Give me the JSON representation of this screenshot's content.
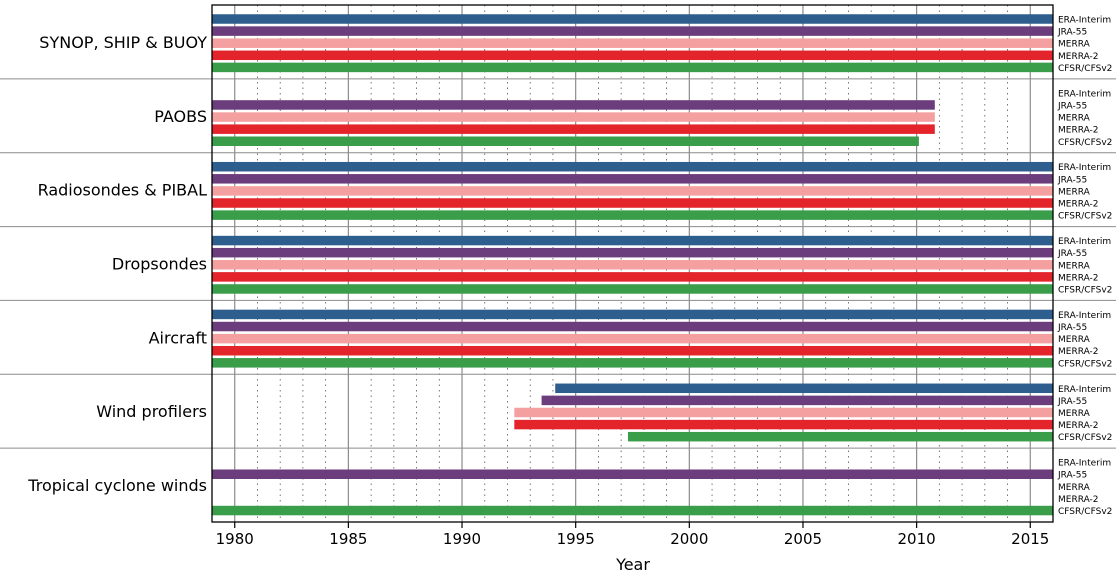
{
  "chart_data": {
    "type": "bar",
    "subtype": "timeline-gantt",
    "title": "",
    "xlabel": "Year",
    "ylabel": "",
    "xlim": [
      1979,
      2016
    ],
    "xticks": [
      1980,
      1985,
      1990,
      1995,
      2000,
      2005,
      2010,
      2015
    ],
    "minor_grid": "yearly dotted lines",
    "major_grid": "solid lines every 5 years",
    "legend_placement": "right of each panel",
    "reanalyses": [
      {
        "name": "ERA-Interim",
        "color": "#2e5e8e"
      },
      {
        "name": "JRA-55",
        "color": "#6b3d7d"
      },
      {
        "name": "MERRA",
        "color": "#f4a0a0"
      },
      {
        "name": "MERRA-2",
        "color": "#e3242b"
      },
      {
        "name": "CFSR/CFSv2",
        "color": "#3a9d4a"
      }
    ],
    "categories": [
      {
        "label": "SYNOP, SHIP & BUOY",
        "spans": [
          [
            1979,
            2016
          ],
          [
            1979,
            2016
          ],
          [
            1979,
            2016
          ],
          [
            1979,
            2016
          ],
          [
            1979,
            2016
          ]
        ]
      },
      {
        "label": "PAOBS",
        "spans": [
          null,
          [
            1979,
            2010.8
          ],
          [
            1979,
            2010.8
          ],
          [
            1979,
            2010.8
          ],
          [
            1979,
            2010.1
          ]
        ]
      },
      {
        "label": "Radiosondes & PIBAL",
        "spans": [
          [
            1979,
            2016
          ],
          [
            1979,
            2016
          ],
          [
            1979,
            2016
          ],
          [
            1979,
            2016
          ],
          [
            1979,
            2016
          ]
        ]
      },
      {
        "label": "Dropsondes",
        "spans": [
          [
            1979,
            2016
          ],
          [
            1979,
            2016
          ],
          [
            1979,
            2016
          ],
          [
            1979,
            2016
          ],
          [
            1979,
            2016
          ]
        ]
      },
      {
        "label": "Aircraft",
        "spans": [
          [
            1979,
            2016
          ],
          [
            1979,
            2016
          ],
          [
            1979,
            2016
          ],
          [
            1979,
            2016
          ],
          [
            1979,
            2016
          ]
        ]
      },
      {
        "label": "Wind profilers",
        "spans": [
          [
            1994.1,
            2016
          ],
          [
            1993.5,
            2016
          ],
          [
            1992.3,
            2016
          ],
          [
            1992.3,
            2016
          ],
          [
            1997.3,
            2016
          ]
        ]
      },
      {
        "label": "Tropical cyclone winds",
        "spans": [
          null,
          [
            1979,
            2016
          ],
          null,
          null,
          [
            1979,
            2016
          ]
        ]
      }
    ]
  }
}
